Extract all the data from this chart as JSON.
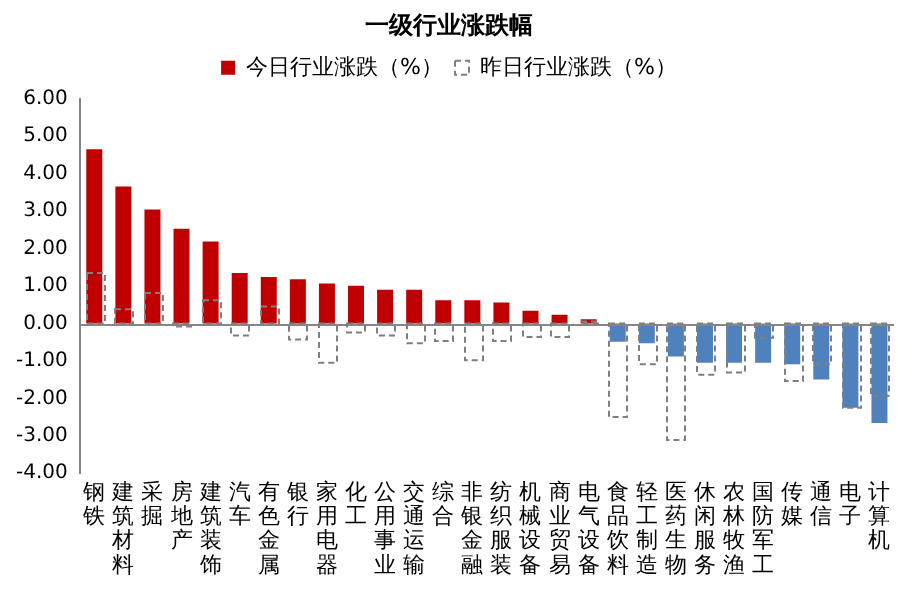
{
  "chart_data": {
    "type": "bar",
    "title": "一级行业涨跌幅",
    "categories": [
      "钢铁",
      "建筑材料",
      "采掘",
      "房地产",
      "建筑装饰",
      "汽车",
      "有色金属",
      "银行",
      "家用电器",
      "化工",
      "公用事业",
      "交通运输",
      "综合",
      "非银金融",
      "纺织服装",
      "机械设备",
      "商业贸易",
      "电气设备",
      "食品饮料",
      "轻工制造",
      "医药生物",
      "休闲服务",
      "农林牧渔",
      "国防军工",
      "传媒",
      "通信",
      "电子",
      "计算机"
    ],
    "series": [
      {
        "name": "今日行业涨跌（%）",
        "color": "#c00000",
        "colors": [
          "#c00000",
          "#c00000",
          "#c00000",
          "#c00000",
          "#c00000",
          "#c00000",
          "#c00000",
          "#c00000",
          "#c00000",
          "#c00000",
          "#c00000",
          "#c00000",
          "#c00000",
          "#c00000",
          "#c00000",
          "#c00000",
          "#c00000",
          "#c00000",
          "#4f81bd",
          "#4f81bd",
          "#4f81bd",
          "#4f81bd",
          "#4f81bd",
          "#4f81bd",
          "#4f81bd",
          "#4f81bd",
          "#4f81bd",
          "#4f81bd"
        ],
        "values": [
          4.65,
          3.66,
          3.04,
          2.53,
          2.19,
          1.35,
          1.24,
          1.18,
          1.07,
          1.01,
          0.9,
          0.9,
          0.62,
          0.62,
          0.56,
          0.34,
          0.23,
          0.11,
          -0.49,
          -0.53,
          -0.88,
          -1.05,
          -1.05,
          -1.05,
          -1.09,
          -1.5,
          -2.25,
          -2.66
        ]
      },
      {
        "name": "昨日行业涨跌（%）",
        "color": "#7f7f7f",
        "line_style": "dashed",
        "values": [
          1.35,
          0.38,
          0.81,
          -0.08,
          0.62,
          -0.32,
          0.45,
          -0.43,
          -1.05,
          -0.24,
          -0.32,
          -0.53,
          -0.47,
          -0.98,
          -0.47,
          -0.36,
          -0.36,
          0.05,
          -2.5,
          -1.09,
          -3.11,
          -1.37,
          -1.31,
          -0.38,
          -1.54,
          -1.09,
          -2.25,
          -1.93
        ]
      }
    ],
    "ylim": [
      -4,
      6
    ],
    "yticks": [
      {
        "value": -4,
        "label": "-4.00"
      },
      {
        "value": -3,
        "label": "-3.00"
      },
      {
        "value": -2,
        "label": "-2.00"
      },
      {
        "value": -1,
        "label": "-1.00"
      },
      {
        "value": 0,
        "label": "0.00"
      },
      {
        "value": 1,
        "label": "1.00"
      },
      {
        "value": 2,
        "label": "2.00"
      },
      {
        "value": 3,
        "label": "3.00"
      },
      {
        "value": 4,
        "label": "4.00"
      },
      {
        "value": 5,
        "label": "5.00"
      },
      {
        "value": 6,
        "label": "6.00"
      }
    ],
    "ref_lines": [
      {
        "axis": "y",
        "value": 0,
        "color": "#868686"
      }
    ],
    "grid": false,
    "legend": "top"
  }
}
